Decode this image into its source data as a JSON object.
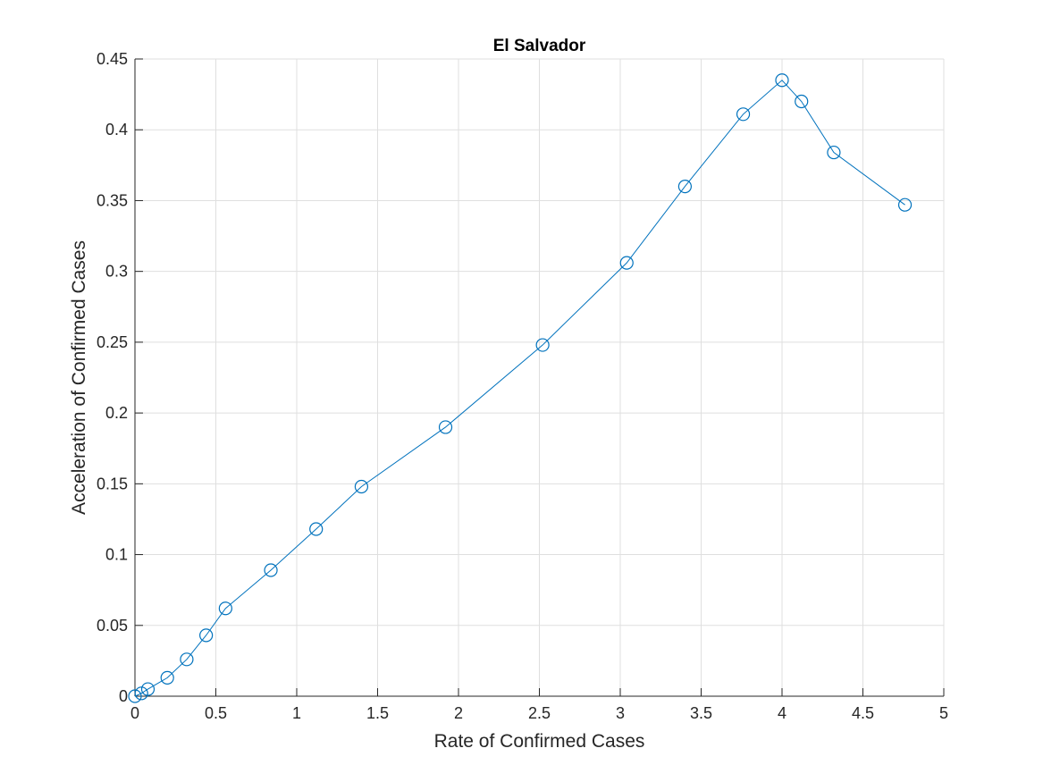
{
  "chart_data": {
    "type": "line",
    "title": "El Salvador",
    "xlabel": "Rate of Confirmed Cases",
    "ylabel": "Acceleration of Confirmed Cases",
    "xlim": [
      0,
      5
    ],
    "ylim": [
      0,
      0.45
    ],
    "xticks": [
      0,
      0.5,
      1,
      1.5,
      2,
      2.5,
      3,
      3.5,
      4,
      4.5,
      5
    ],
    "xtick_labels": [
      "0",
      "0.5",
      "1",
      "1.5",
      "2",
      "2.5",
      "3",
      "3.5",
      "4",
      "4.5",
      "5"
    ],
    "yticks": [
      0,
      0.05,
      0.1,
      0.15,
      0.2,
      0.25,
      0.3,
      0.35,
      0.4,
      0.45
    ],
    "ytick_labels": [
      "0",
      "0.05",
      "0.1",
      "0.15",
      "0.2",
      "0.25",
      "0.3",
      "0.35",
      "0.4",
      "0.45"
    ],
    "grid": true,
    "marker": "circle",
    "series_color": "#0072BD",
    "series": [
      {
        "x": [
          0.0,
          0.04,
          0.08,
          0.2,
          0.32,
          0.44,
          0.56,
          0.84,
          1.12,
          1.4,
          1.92,
          2.52,
          3.04,
          3.4,
          3.76,
          4.0,
          4.12,
          4.32,
          4.76
        ],
        "y": [
          0.0,
          0.002,
          0.005,
          0.013,
          0.026,
          0.043,
          0.062,
          0.089,
          0.118,
          0.148,
          0.19,
          0.248,
          0.306,
          0.36,
          0.411,
          0.435,
          0.42,
          0.384,
          0.347
        ]
      }
    ]
  }
}
